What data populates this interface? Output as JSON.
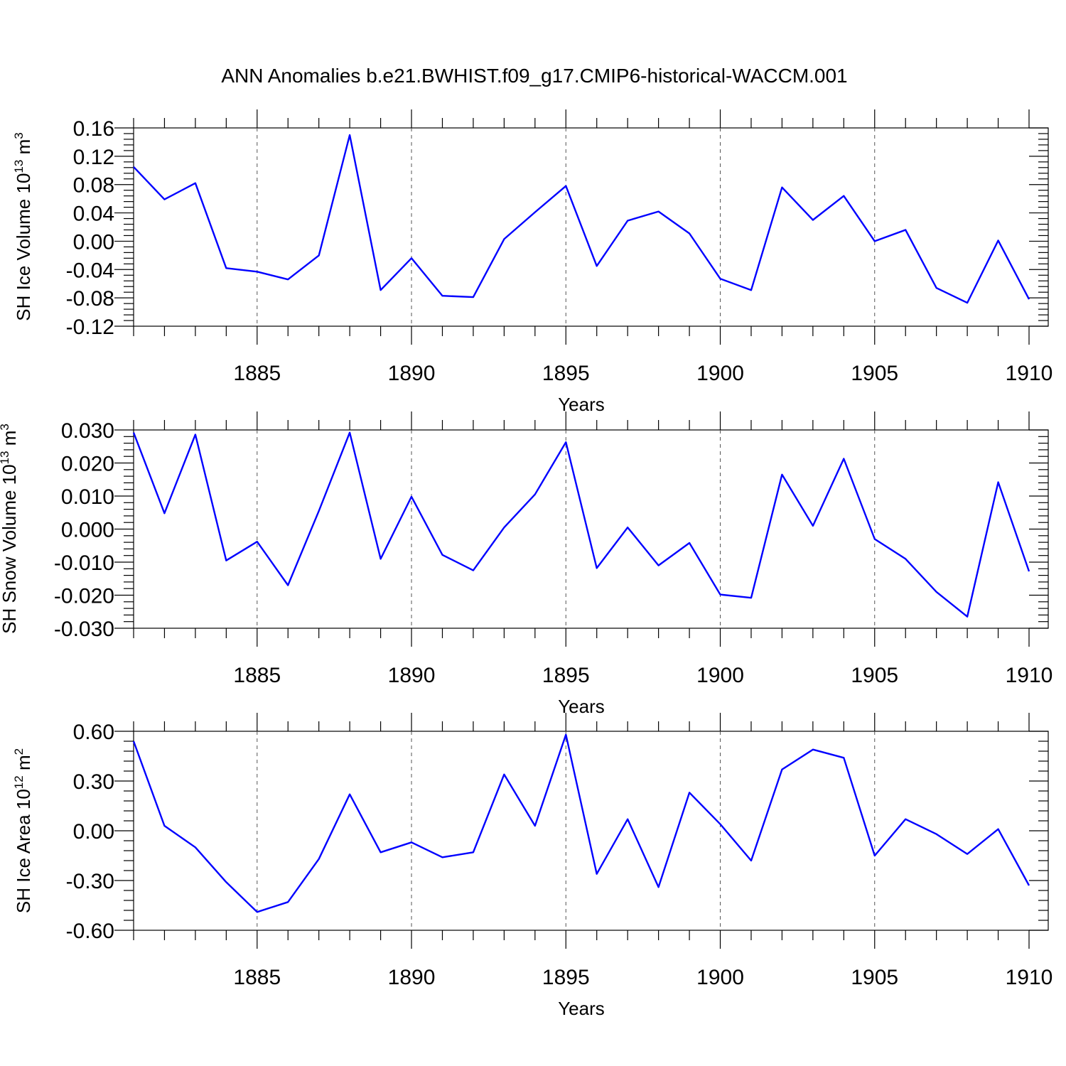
{
  "title": "ANN Anomalies b.e21.BWHIST.f09_g17.CMIP6-historical-WACCM.001",
  "chart_data": [
    {
      "type": "line",
      "name": "sh-ice-volume",
      "ylabel_main": "SH Ice Volume 10",
      "ylabel_exp": "13",
      "ylabel_unit": " m",
      "ylabel_unit_exp": "3",
      "xlabel": "Years",
      "xlim": [
        1881,
        1910
      ],
      "ylim": [
        -0.12,
        0.16
      ],
      "yticks": [
        -0.12,
        -0.08,
        -0.04,
        0.0,
        0.04,
        0.08,
        0.12,
        0.16
      ],
      "ytick_labels": [
        "-0.12",
        "-0.08",
        "-0.04",
        "0.00",
        "0.04",
        "0.08",
        "0.12",
        "0.16"
      ],
      "xticks": [
        1885,
        1890,
        1895,
        1900,
        1905,
        1910
      ],
      "xtick_labels": [
        "1885",
        "1890",
        "1895",
        "1900",
        "1905",
        "1910"
      ],
      "color": "#0000ff",
      "x": [
        1881,
        1882,
        1883,
        1884,
        1885,
        1886,
        1887,
        1888,
        1889,
        1890,
        1891,
        1892,
        1893,
        1894,
        1895,
        1896,
        1897,
        1898,
        1899,
        1900,
        1901,
        1902,
        1903,
        1904,
        1905,
        1906,
        1907,
        1908,
        1909,
        1910
      ],
      "values": [
        0.105,
        0.059,
        0.082,
        -0.038,
        -0.043,
        -0.054,
        -0.02,
        0.15,
        -0.069,
        -0.024,
        -0.077,
        -0.079,
        0.003,
        0.041,
        0.078,
        -0.035,
        0.029,
        0.042,
        0.011,
        -0.053,
        -0.069,
        0.076,
        0.03,
        0.064,
        0.0,
        0.016,
        -0.066,
        -0.087,
        0.001,
        -0.082
      ]
    },
    {
      "type": "line",
      "name": "sh-snow-volume",
      "ylabel_main": "SH Snow Volume 10",
      "ylabel_exp": "13",
      "ylabel_unit": " m",
      "ylabel_unit_exp": "3",
      "xlabel": "Years",
      "xlim": [
        1881,
        1910
      ],
      "ylim": [
        -0.03,
        0.03
      ],
      "yticks": [
        -0.03,
        -0.02,
        -0.01,
        0.0,
        0.01,
        0.02,
        0.03
      ],
      "ytick_labels": [
        "-0.030",
        "-0.020",
        "-0.010",
        "0.000",
        "0.010",
        "0.020",
        "0.030"
      ],
      "xticks": [
        1885,
        1890,
        1895,
        1900,
        1905,
        1910
      ],
      "xtick_labels": [
        "1885",
        "1890",
        "1895",
        "1900",
        "1905",
        "1910"
      ],
      "color": "#0000ff",
      "x": [
        1881,
        1882,
        1883,
        1884,
        1885,
        1886,
        1887,
        1888,
        1889,
        1890,
        1891,
        1892,
        1893,
        1894,
        1895,
        1896,
        1897,
        1898,
        1899,
        1900,
        1901,
        1902,
        1903,
        1904,
        1905,
        1906,
        1907,
        1908,
        1909,
        1910
      ],
      "values": [
        0.0292,
        0.0048,
        0.0286,
        -0.0095,
        -0.0038,
        -0.017,
        0.0055,
        0.0292,
        -0.009,
        0.0098,
        -0.0078,
        -0.0125,
        0.0005,
        0.0105,
        0.0263,
        -0.0118,
        0.0005,
        -0.011,
        -0.0042,
        -0.0198,
        -0.0208,
        0.0165,
        0.001,
        0.0213,
        -0.003,
        -0.009,
        -0.019,
        -0.0265,
        0.0142,
        -0.0128
      ]
    },
    {
      "type": "line",
      "name": "sh-ice-area",
      "ylabel_main": "SH Ice Area 10",
      "ylabel_exp": "12",
      "ylabel_unit": " m",
      "ylabel_unit_exp": "2",
      "xlabel": "Years",
      "xlim": [
        1881,
        1910
      ],
      "ylim": [
        -0.6,
        0.6
      ],
      "yticks": [
        -0.6,
        -0.3,
        0.0,
        0.3,
        0.6
      ],
      "ytick_labels": [
        "-0.60",
        "-0.30",
        "0.00",
        "0.30",
        "0.60"
      ],
      "xticks": [
        1885,
        1890,
        1895,
        1900,
        1905,
        1910
      ],
      "xtick_labels": [
        "1885",
        "1890",
        "1895",
        "1900",
        "1905",
        "1910"
      ],
      "color": "#0000ff",
      "x": [
        1881,
        1882,
        1883,
        1884,
        1885,
        1886,
        1887,
        1888,
        1889,
        1890,
        1891,
        1892,
        1893,
        1894,
        1895,
        1896,
        1897,
        1898,
        1899,
        1900,
        1901,
        1902,
        1903,
        1904,
        1905,
        1906,
        1907,
        1908,
        1909,
        1910
      ],
      "values": [
        0.54,
        0.03,
        -0.1,
        -0.31,
        -0.49,
        -0.43,
        -0.17,
        0.22,
        -0.13,
        -0.07,
        -0.16,
        -0.13,
        0.34,
        0.03,
        0.58,
        -0.26,
        0.07,
        -0.34,
        0.23,
        0.04,
        -0.18,
        0.37,
        0.49,
        0.44,
        -0.15,
        0.07,
        -0.02,
        -0.14,
        0.01,
        -0.33
      ]
    }
  ]
}
